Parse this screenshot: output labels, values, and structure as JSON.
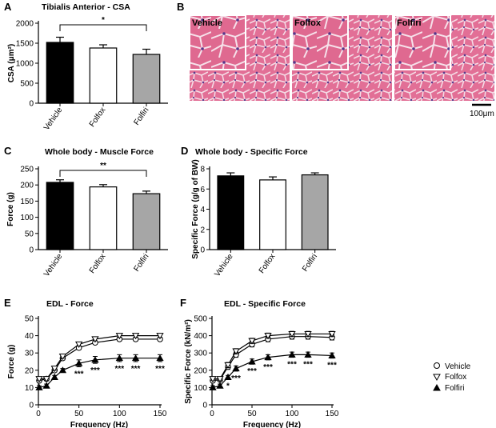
{
  "panels": {
    "A": {
      "letter": "A",
      "title": "Tibialis Anterior - CSA"
    },
    "B": {
      "letter": "B",
      "labels": [
        "Vehicle",
        "Folfox",
        "Folfiri"
      ],
      "scale_bar": "100μm"
    },
    "C": {
      "letter": "C",
      "title": "Whole body - Muscle Force"
    },
    "D": {
      "letter": "D",
      "title": "Whole body - Specific Force"
    },
    "E": {
      "letter": "E",
      "title": "EDL - Force"
    },
    "F": {
      "letter": "F",
      "title": "EDL - Specific Force"
    }
  },
  "legend": {
    "entries": [
      "Vehicle",
      "Folfox",
      "Folfiri"
    ]
  },
  "chart_data": [
    {
      "id": "A",
      "type": "bar",
      "title": "Tibialis Anterior - CSA",
      "ylabel": "CSA (μm²)",
      "xlabel": "",
      "categories": [
        "Vehicle",
        "Folfox",
        "Folfiri"
      ],
      "values": [
        1520,
        1380,
        1220
      ],
      "errors": [
        130,
        80,
        130
      ],
      "colors": [
        "#000000",
        "#ffffff",
        "#a6a6a6"
      ],
      "ylim": [
        0,
        2000
      ],
      "yticks": [
        "0",
        "500",
        "1000",
        "1500",
        "2000"
      ],
      "significance": [
        {
          "from": 0,
          "to": 2,
          "label": "*"
        }
      ]
    },
    {
      "id": "C",
      "type": "bar",
      "title": "Whole body - Muscle Force",
      "ylabel": "Force (g)",
      "xlabel": "",
      "categories": [
        "Vehicle",
        "Folfox",
        "Folfiri"
      ],
      "values": [
        208,
        194,
        173
      ],
      "errors": [
        8,
        7,
        8
      ],
      "colors": [
        "#000000",
        "#ffffff",
        "#a6a6a6"
      ],
      "ylim": [
        0,
        250
      ],
      "yticks": [
        "0",
        "50",
        "100",
        "150",
        "200",
        "250"
      ],
      "significance": [
        {
          "from": 0,
          "to": 2,
          "label": "**"
        }
      ]
    },
    {
      "id": "D",
      "type": "bar",
      "title": "Whole body - Specific Force",
      "ylabel": "Specific Force (g/g of BW)",
      "xlabel": "",
      "categories": [
        "Vehicle",
        "Folfox",
        "Folfiri"
      ],
      "values": [
        7.3,
        6.9,
        7.4
      ],
      "errors": [
        0.3,
        0.3,
        0.2
      ],
      "colors": [
        "#000000",
        "#ffffff",
        "#a6a6a6"
      ],
      "ylim": [
        0,
        8
      ],
      "yticks": [
        "0",
        "2",
        "4",
        "6",
        "8"
      ],
      "significance": []
    },
    {
      "id": "E",
      "type": "line",
      "title": "EDL - Force",
      "xlabel": "Frequency (Hz)",
      "ylabel": "Force (g)",
      "x": [
        1,
        10,
        20,
        30,
        50,
        70,
        100,
        120,
        150
      ],
      "series": [
        {
          "name": "Vehicle",
          "marker": "circle",
          "values": [
            14,
            15,
            20,
            27,
            33,
            36,
            38,
            38,
            38
          ],
          "errors": [
            1,
            1,
            1,
            1,
            1,
            1,
            1,
            1,
            1
          ]
        },
        {
          "name": "Folfox",
          "marker": "triangle-down",
          "values": [
            15,
            15,
            21,
            28,
            35,
            38,
            40,
            40,
            40
          ],
          "errors": [
            1,
            1,
            1,
            1,
            1,
            1,
            1,
            1,
            1
          ]
        },
        {
          "name": "Folfiri",
          "marker": "triangle-up",
          "values": [
            10,
            11,
            16,
            20,
            24,
            26,
            27,
            27,
            27
          ],
          "errors": [
            1,
            1,
            1,
            1,
            2,
            2,
            2,
            2,
            2
          ]
        }
      ],
      "xlim": [
        0,
        150
      ],
      "ylim": [
        0,
        50
      ],
      "xticks": [
        "0",
        "50",
        "100",
        "150"
      ],
      "yticks": [
        "0",
        "10",
        "20",
        "30",
        "40",
        "50"
      ],
      "annotations": [
        {
          "x": 50,
          "label": "***"
        },
        {
          "x": 70,
          "label": "***"
        },
        {
          "x": 100,
          "label": "***"
        },
        {
          "x": 120,
          "label": "***"
        },
        {
          "x": 150,
          "label": "***"
        }
      ]
    },
    {
      "id": "F",
      "type": "line",
      "title": "EDL - Specific Force",
      "xlabel": "Frequency (Hz)",
      "ylabel": "Specific Force (kN/m²)",
      "x": [
        1,
        10,
        20,
        30,
        50,
        70,
        100,
        120,
        150
      ],
      "series": [
        {
          "name": "Vehicle",
          "marker": "circle",
          "values": [
            140,
            145,
            220,
            290,
            350,
            380,
            395,
            395,
            390
          ],
          "errors": [
            10,
            10,
            15,
            15,
            15,
            15,
            15,
            15,
            15
          ]
        },
        {
          "name": "Folfox",
          "marker": "triangle-down",
          "values": [
            150,
            150,
            230,
            310,
            370,
            400,
            410,
            410,
            410
          ],
          "errors": [
            10,
            10,
            15,
            15,
            15,
            15,
            15,
            15,
            15
          ]
        },
        {
          "name": "Folfiri",
          "marker": "triangle-up",
          "values": [
            100,
            110,
            160,
            210,
            250,
            275,
            290,
            290,
            285
          ],
          "errors": [
            10,
            10,
            10,
            15,
            15,
            15,
            15,
            15,
            15
          ]
        }
      ],
      "xlim": [
        0,
        150
      ],
      "ylim": [
        0,
        500
      ],
      "xticks": [
        "0",
        "50",
        "100",
        "150"
      ],
      "yticks": [
        "0",
        "100",
        "200",
        "300",
        "400",
        "500"
      ],
      "annotations": [
        {
          "x": 20,
          "label": "*"
        },
        {
          "x": 30,
          "label": "***"
        },
        {
          "x": 50,
          "label": "***"
        },
        {
          "x": 70,
          "label": "***"
        },
        {
          "x": 100,
          "label": "***"
        },
        {
          "x": 120,
          "label": "***"
        },
        {
          "x": 150,
          "label": "***"
        }
      ]
    }
  ]
}
